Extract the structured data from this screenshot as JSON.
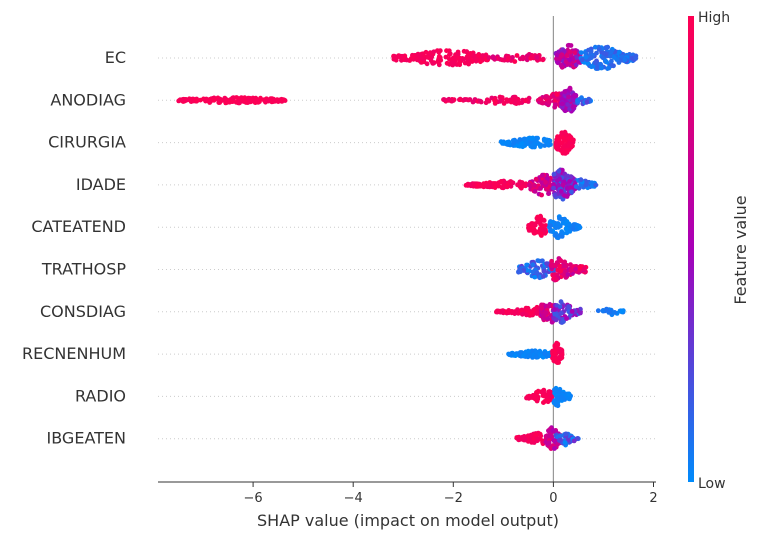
{
  "chart_data": {
    "type": "scatter",
    "subtype": "shap-beeswarm-summary",
    "xlabel": "SHAP value (impact on model output)",
    "ylabel": "",
    "xlim": [
      -7.9,
      2.05
    ],
    "x_ticks": [
      -6,
      -4,
      -2,
      0,
      2
    ],
    "x_tick_labels": [
      "−6",
      "−4",
      "−2",
      "0",
      "2"
    ],
    "zero_line": 0,
    "grid": false,
    "colorbar": {
      "label": "Feature value",
      "high_label": "High",
      "low_label": "Low",
      "high_color": "#ff0052",
      "mid_color": "#a800b8",
      "low_color": "#008bfb"
    },
    "features": [
      {
        "name": "EC",
        "clusters": [
          {
            "x": [
              -3.2,
              -1.3
            ],
            "peak": -2.1,
            "width": 0.4,
            "thick": 0.55,
            "n": 180,
            "c": [
              0.92,
              1.0
            ]
          },
          {
            "x": [
              -1.3,
              -0.2
            ],
            "peak": -0.6,
            "width": 0.3,
            "thick": 0.25,
            "n": 45,
            "c": [
              0.75,
              1.0
            ]
          },
          {
            "x": [
              0.05,
              0.55
            ],
            "peak": 0.3,
            "width": 0.12,
            "thick": 0.85,
            "n": 110,
            "c": [
              0.35,
              0.85
            ]
          },
          {
            "x": [
              0.55,
              1.65
            ],
            "peak": 0.95,
            "width": 0.25,
            "thick": 0.75,
            "n": 160,
            "c": [
              0.0,
              0.2
            ]
          }
        ]
      },
      {
        "name": "ANODIAG",
        "clusters": [
          {
            "x": [
              -7.5,
              -5.35
            ],
            "peak": -6.4,
            "width": 0.6,
            "thick": 0.18,
            "n": 150,
            "c": [
              0.95,
              1.0
            ]
          },
          {
            "x": [
              -2.2,
              -0.3
            ],
            "peak": -0.9,
            "width": 0.5,
            "thick": 0.22,
            "n": 70,
            "c": [
              0.85,
              1.0
            ]
          },
          {
            "x": [
              -0.3,
              0.15
            ],
            "peak": 0.05,
            "width": 0.15,
            "thick": 0.45,
            "n": 45,
            "c": [
              0.7,
              1.0
            ]
          },
          {
            "x": [
              0.15,
              0.45
            ],
            "peak": 0.3,
            "width": 0.1,
            "thick": 0.8,
            "n": 85,
            "c": [
              0.35,
              0.65
            ]
          },
          {
            "x": [
              0.45,
              0.75
            ],
            "peak": 0.5,
            "width": 0.1,
            "thick": 0.3,
            "n": 20,
            "c": [
              0.0,
              0.3
            ]
          }
        ]
      },
      {
        "name": "CIRURGIA",
        "clusters": [
          {
            "x": [
              -1.05,
              -0.05
            ],
            "peak": -0.45,
            "width": 0.3,
            "thick": 0.3,
            "n": 95,
            "c": [
              0.0,
              0.05
            ]
          },
          {
            "x": [
              0.05,
              0.4
            ],
            "peak": 0.2,
            "width": 0.1,
            "thick": 0.75,
            "n": 80,
            "c": [
              0.95,
              1.0
            ]
          }
        ]
      },
      {
        "name": "IDADE",
        "clusters": [
          {
            "x": [
              -1.75,
              -0.5
            ],
            "peak": -0.9,
            "width": 0.35,
            "thick": 0.25,
            "n": 90,
            "c": [
              0.9,
              1.0
            ]
          },
          {
            "x": [
              -0.5,
              0.0
            ],
            "peak": -0.2,
            "width": 0.15,
            "thick": 0.65,
            "n": 75,
            "c": [
              0.55,
              0.95
            ]
          },
          {
            "x": [
              0.0,
              0.45
            ],
            "peak": 0.15,
            "width": 0.15,
            "thick": 0.95,
            "n": 130,
            "c": [
              0.15,
              0.6
            ]
          },
          {
            "x": [
              0.45,
              0.85
            ],
            "peak": 0.55,
            "width": 0.12,
            "thick": 0.35,
            "n": 30,
            "c": [
              0.0,
              0.2
            ]
          }
        ]
      },
      {
        "name": "CATEATEND",
        "clusters": [
          {
            "x": [
              -0.5,
              -0.15
            ],
            "peak": -0.28,
            "width": 0.08,
            "thick": 0.75,
            "n": 60,
            "c": [
              0.95,
              1.0
            ]
          },
          {
            "x": [
              -0.08,
              0.55
            ],
            "peak": 0.12,
            "width": 0.12,
            "thick": 0.7,
            "n": 70,
            "c": [
              0.0,
              0.08
            ]
          }
        ]
      },
      {
        "name": "TRATHOSP",
        "clusters": [
          {
            "x": [
              -0.7,
              0.05
            ],
            "peak": -0.3,
            "width": 0.18,
            "thick": 0.6,
            "n": 75,
            "c": [
              0.0,
              0.3
            ]
          },
          {
            "x": [
              -0.05,
              0.65
            ],
            "peak": 0.1,
            "width": 0.15,
            "thick": 0.75,
            "n": 90,
            "c": [
              0.6,
              1.0
            ]
          }
        ]
      },
      {
        "name": "CONSDIAG",
        "clusters": [
          {
            "x": [
              -1.15,
              -0.15
            ],
            "peak": -0.35,
            "width": 0.25,
            "thick": 0.3,
            "n": 80,
            "c": [
              0.9,
              1.0
            ]
          },
          {
            "x": [
              -0.25,
              0.1
            ],
            "peak": -0.1,
            "width": 0.1,
            "thick": 0.8,
            "n": 55,
            "c": [
              0.6,
              0.9
            ]
          },
          {
            "x": [
              0.0,
              0.55
            ],
            "peak": 0.15,
            "width": 0.12,
            "thick": 0.7,
            "n": 70,
            "c": [
              0.15,
              0.55
            ]
          },
          {
            "x": [
              0.85,
              1.4
            ],
            "peak": 1.15,
            "width": 0.15,
            "thick": 0.2,
            "n": 22,
            "c": [
              0.0,
              0.1
            ]
          }
        ]
      },
      {
        "name": "RECNENHUM",
        "clusters": [
          {
            "x": [
              -0.9,
              -0.02
            ],
            "peak": -0.35,
            "width": 0.25,
            "thick": 0.22,
            "n": 85,
            "c": [
              0.0,
              0.05
            ]
          },
          {
            "x": [
              -0.02,
              0.18
            ],
            "peak": 0.07,
            "width": 0.05,
            "thick": 0.7,
            "n": 55,
            "c": [
              0.95,
              1.0
            ]
          }
        ]
      },
      {
        "name": "RADIO",
        "clusters": [
          {
            "x": [
              -0.55,
              -0.02
            ],
            "peak": -0.2,
            "width": 0.12,
            "thick": 0.45,
            "n": 55,
            "c": [
              0.95,
              1.0
            ]
          },
          {
            "x": [
              0.0,
              0.35
            ],
            "peak": 0.08,
            "width": 0.07,
            "thick": 0.65,
            "n": 60,
            "c": [
              0.0,
              0.05
            ]
          }
        ]
      },
      {
        "name": "IBGEATEN",
        "clusters": [
          {
            "x": [
              -0.75,
              -0.1
            ],
            "peak": -0.3,
            "width": 0.18,
            "thick": 0.35,
            "n": 65,
            "c": [
              0.9,
              1.0
            ]
          },
          {
            "x": [
              -0.15,
              0.15
            ],
            "peak": -0.02,
            "width": 0.08,
            "thick": 0.75,
            "n": 60,
            "c": [
              0.5,
              0.9
            ]
          },
          {
            "x": [
              0.05,
              0.5
            ],
            "peak": 0.2,
            "width": 0.1,
            "thick": 0.45,
            "n": 50,
            "c": [
              0.0,
              0.35
            ]
          }
        ]
      }
    ]
  }
}
